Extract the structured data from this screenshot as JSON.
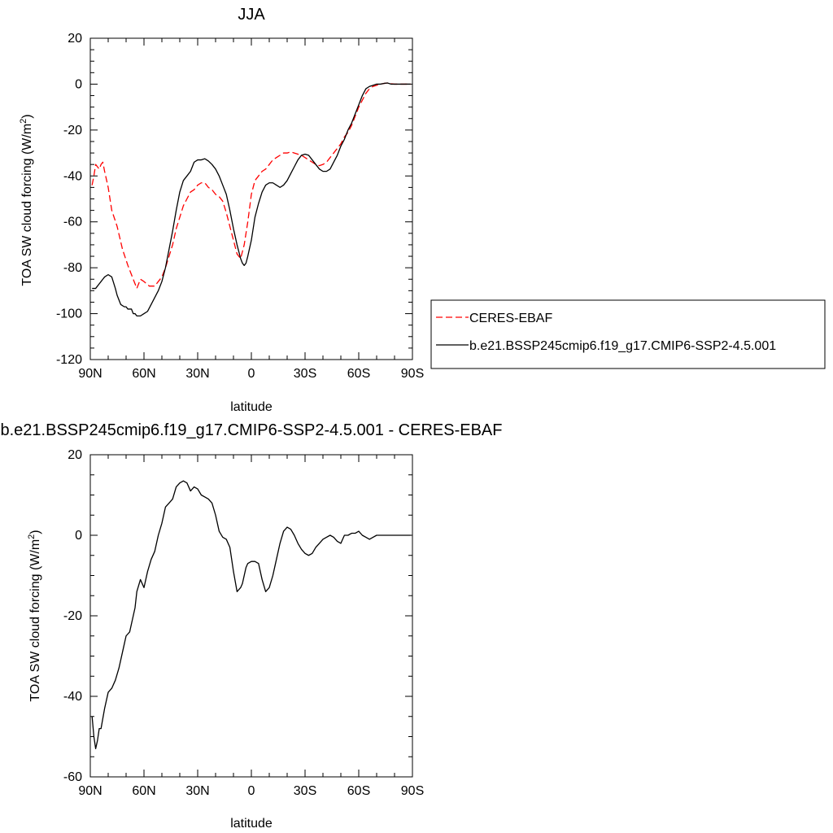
{
  "chart_data": [
    {
      "type": "line",
      "title": "JJA",
      "xlabel": "latitude",
      "ylabel_main": "TOA SW cloud forcing (W/m",
      "ylabel_sup": "2",
      "ylabel_tail": ")",
      "xlim": [
        90,
        -90
      ],
      "ylim": [
        -120,
        20
      ],
      "x_ticks": [
        {
          "value": 90,
          "label": "90N"
        },
        {
          "value": 60,
          "label": "60N"
        },
        {
          "value": 30,
          "label": "30N"
        },
        {
          "value": 0,
          "label": "0"
        },
        {
          "value": -30,
          "label": "30S"
        },
        {
          "value": -60,
          "label": "60S"
        },
        {
          "value": -90,
          "label": "90S"
        }
      ],
      "y_ticks": [
        {
          "value": 20,
          "label": "20"
        },
        {
          "value": 0,
          "label": "0"
        },
        {
          "value": -20,
          "label": "-20"
        },
        {
          "value": -40,
          "label": "-40"
        },
        {
          "value": -60,
          "label": "-60"
        },
        {
          "value": -80,
          "label": "-80"
        },
        {
          "value": -100,
          "label": "-100"
        },
        {
          "value": -120,
          "label": "-120"
        }
      ],
      "legend": {
        "position": "right"
      },
      "series": [
        {
          "name": "CERES-EBAF",
          "color": "#ff0000",
          "dash": "dashed",
          "x": [
            89,
            88,
            87,
            86,
            85,
            84,
            83,
            82,
            80,
            78,
            75,
            72,
            69,
            66,
            64,
            62,
            60,
            57,
            54,
            52,
            50,
            48,
            46,
            44,
            42,
            40,
            38,
            36,
            34,
            32,
            30,
            28,
            26,
            24,
            22,
            20,
            18,
            16,
            14,
            12,
            10,
            8,
            6,
            4,
            2,
            0,
            -2,
            -4,
            -6,
            -8,
            -10,
            -12,
            -14,
            -16,
            -18,
            -20,
            -22,
            -24,
            -26,
            -28,
            -30,
            -32,
            -34,
            -36,
            -38,
            -40,
            -42,
            -44,
            -46,
            -48,
            -50,
            -52,
            -54,
            -56,
            -58,
            -60,
            -62,
            -64,
            -66,
            -68,
            -70,
            -72,
            -74,
            -76,
            -78,
            -80,
            -82,
            -84,
            -86,
            -88,
            -89
          ],
          "y": [
            -44,
            -40,
            -35,
            -36,
            -37,
            -35,
            -34,
            -38,
            -45,
            -55,
            -62,
            -72,
            -79,
            -85,
            -89,
            -85,
            -86,
            -88,
            -88,
            -86,
            -84,
            -80,
            -75,
            -70,
            -63,
            -58,
            -53,
            -50,
            -47,
            -46,
            -44,
            -43,
            -43,
            -45,
            -46,
            -48,
            -49,
            -51,
            -56,
            -62,
            -68,
            -74,
            -76,
            -70,
            -60,
            -48,
            -42,
            -40,
            -38,
            -37,
            -35,
            -33,
            -32,
            -31,
            -30,
            -30,
            -29.5,
            -30,
            -30.5,
            -31,
            -32,
            -33,
            -34,
            -35,
            -35.5,
            -35,
            -34,
            -32,
            -30,
            -28,
            -26,
            -23,
            -21,
            -18,
            -14,
            -10,
            -7,
            -4,
            -2,
            -1,
            -0.5,
            0,
            0.3,
            0.5,
            0.2,
            0,
            0,
            0,
            0,
            0,
            0
          ]
        },
        {
          "name": "b.e21.BSSP245cmip6.f19_g17.CMIP6-SSP2-4.5.001",
          "color": "#000000",
          "dash": "solid",
          "x": [
            89,
            88,
            87,
            86,
            85,
            84,
            83,
            82,
            80,
            78,
            76,
            75,
            73,
            71,
            70,
            69,
            68,
            67,
            66,
            65,
            64,
            62,
            60,
            58,
            56,
            54,
            52,
            50,
            48,
            46,
            44,
            42,
            40,
            38,
            36,
            34,
            32,
            30,
            28,
            26,
            24,
            22,
            20,
            18,
            16,
            14,
            12,
            10,
            8,
            6,
            5,
            4,
            3,
            2,
            0,
            -2,
            -4,
            -6,
            -8,
            -10,
            -12,
            -14,
            -16,
            -18,
            -20,
            -22,
            -24,
            -26,
            -28,
            -30,
            -32,
            -34,
            -36,
            -38,
            -40,
            -42,
            -44,
            -46,
            -48,
            -50,
            -52,
            -54,
            -56,
            -58,
            -60,
            -62,
            -64,
            -66,
            -68,
            -70,
            -72,
            -74,
            -76,
            -78,
            -80,
            -82,
            -84,
            -86,
            -88,
            -89
          ],
          "y": [
            -89,
            -89,
            -89,
            -88,
            -87,
            -86,
            -85,
            -84,
            -83,
            -84,
            -89,
            -92,
            -96,
            -97,
            -97,
            -98,
            -98,
            -98,
            -100,
            -100,
            -101,
            -101,
            -100,
            -99,
            -96,
            -93,
            -90,
            -86,
            -80,
            -72,
            -64,
            -55,
            -47,
            -42,
            -40,
            -38,
            -34,
            -33,
            -33,
            -32.5,
            -33.5,
            -35,
            -37,
            -40,
            -44,
            -48,
            -55,
            -63,
            -70,
            -76,
            -78,
            -79,
            -78,
            -75,
            -68,
            -58,
            -52,
            -47,
            -44,
            -43,
            -43,
            -44,
            -45,
            -44,
            -42,
            -39,
            -36,
            -33,
            -31,
            -30.5,
            -31,
            -33,
            -35,
            -37,
            -38,
            -38,
            -37,
            -34,
            -31,
            -27,
            -24,
            -20,
            -17,
            -13,
            -9,
            -5,
            -2,
            -1,
            -0.5,
            0,
            0,
            0.3,
            0.5,
            0,
            0,
            0,
            0,
            0,
            0,
            0
          ]
        }
      ]
    },
    {
      "type": "line",
      "title": "b.e21.BSSP245cmip6.f19_g17.CMIP6-SSP2-4.5.001 - CERES-EBAF",
      "xlabel": "latitude",
      "ylabel_main": "TOA SW cloud forcing (W/m",
      "ylabel_sup": "2",
      "ylabel_tail": ")",
      "xlim": [
        90,
        -90
      ],
      "ylim": [
        -60,
        20
      ],
      "x_ticks": [
        {
          "value": 90,
          "label": "90N"
        },
        {
          "value": 60,
          "label": "60N"
        },
        {
          "value": 30,
          "label": "30N"
        },
        {
          "value": 0,
          "label": "0"
        },
        {
          "value": -30,
          "label": "30S"
        },
        {
          "value": -60,
          "label": "60S"
        },
        {
          "value": -90,
          "label": "90S"
        }
      ],
      "y_ticks": [
        {
          "value": 20,
          "label": "20"
        },
        {
          "value": 0,
          "label": "0"
        },
        {
          "value": -20,
          "label": "-20"
        },
        {
          "value": -40,
          "label": "-40"
        },
        {
          "value": -60,
          "label": "-60"
        }
      ],
      "series": [
        {
          "color": "#000000",
          "dash": "solid",
          "x": [
            89,
            88,
            87,
            86,
            85,
            84,
            82,
            80,
            78,
            76,
            74,
            72,
            70,
            68,
            66,
            65,
            64,
            62,
            60,
            58,
            56,
            54,
            52,
            50,
            48,
            46,
            44,
            42,
            40,
            38,
            36,
            34,
            32,
            30,
            28,
            26,
            24,
            22,
            20,
            18,
            16,
            14,
            12,
            10,
            8,
            6,
            5,
            4,
            3,
            2,
            0,
            -2,
            -4,
            -6,
            -8,
            -10,
            -12,
            -14,
            -16,
            -18,
            -20,
            -22,
            -24,
            -26,
            -28,
            -30,
            -32,
            -34,
            -36,
            -38,
            -40,
            -42,
            -44,
            -46,
            -48,
            -50,
            -52,
            -54,
            -56,
            -58,
            -60,
            -62,
            -64,
            -66,
            -68,
            -70,
            -72,
            -74,
            -76,
            -78,
            -80,
            -82,
            -84,
            -86,
            -88,
            -89
          ],
          "y": [
            -45,
            -50,
            -53,
            -51,
            -48,
            -48,
            -43,
            -39,
            -38,
            -36,
            -33,
            -29,
            -25,
            -24,
            -20,
            -18,
            -14,
            -11,
            -13,
            -9,
            -6,
            -4,
            0,
            3,
            7,
            8,
            9,
            12,
            13,
            13.5,
            13,
            11,
            12,
            11.5,
            10,
            9.5,
            9,
            8,
            5,
            1,
            -0.5,
            -1,
            -3,
            -9,
            -14,
            -13,
            -12,
            -10,
            -8,
            -7,
            -6.5,
            -6.5,
            -7,
            -11,
            -14,
            -13,
            -10,
            -6,
            -2,
            1,
            2,
            1.5,
            0,
            -2,
            -3.5,
            -4.5,
            -5,
            -4.5,
            -3,
            -2,
            -1,
            -0.5,
            0,
            -0.5,
            -1.5,
            -2,
            0,
            0,
            0.5,
            0.5,
            1,
            0,
            -0.5,
            -1,
            -0.5,
            0,
            0,
            0,
            0,
            0,
            0,
            0,
            0,
            0,
            0,
            0
          ]
        }
      ]
    }
  ]
}
